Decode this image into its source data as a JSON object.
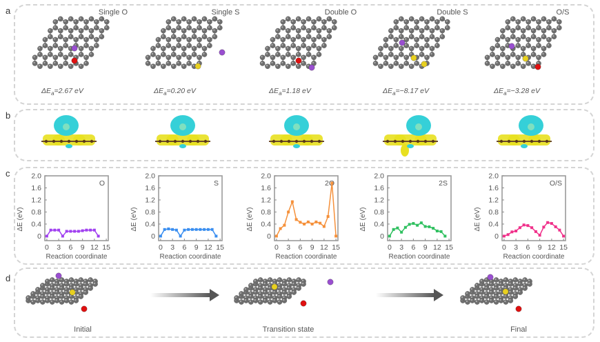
{
  "figure": {
    "panels": {
      "a": {
        "letter": "a",
        "structures": [
          {
            "title": "Single O",
            "energy_prefix": "ΔE",
            "energy_sub": "a",
            "energy_value": "=2.67 eV",
            "dopants": [
              "O"
            ]
          },
          {
            "title": "Single S",
            "energy_prefix": "ΔE",
            "energy_sub": "a",
            "energy_value": "=0.20 eV",
            "dopants": [
              "S"
            ]
          },
          {
            "title": "Double O",
            "energy_prefix": "ΔE",
            "energy_sub": "a",
            "energy_value": "=1.18 eV",
            "dopants": [
              "O"
            ]
          },
          {
            "title": "Double S",
            "energy_prefix": "ΔE",
            "energy_sub": "a",
            "energy_value": "=−8.17 eV",
            "dopants": [
              "S",
              "S"
            ]
          },
          {
            "title": "O/S",
            "energy_prefix": "ΔE",
            "energy_sub": "a",
            "energy_value": "=−3.28 eV",
            "dopants": [
              "S",
              "O"
            ]
          }
        ]
      },
      "b": {
        "letter": "b",
        "description": "Charge density difference side views for each structure"
      },
      "c": {
        "letter": "c",
        "ylabel": "ΔE (eV)",
        "xlabel": "Reaction coordinate"
      },
      "d": {
        "letter": "d",
        "stages": [
          "Initial",
          "Transition state",
          "Final"
        ]
      }
    },
    "colors": {
      "carbon": "#6e6e6e",
      "oxygen": "#e01010",
      "sulfur": "#e8d020",
      "potassium": "#9a4fd0",
      "isosurface_cyan": "#35d0d8",
      "isosurface_yellow": "#e8e020",
      "border": "#d4d4d4"
    }
  },
  "chart_data": [
    {
      "type": "line",
      "label": "O",
      "color": "#a040f0",
      "x": [
        0,
        1,
        2,
        3,
        4,
        5,
        6,
        7,
        8,
        9,
        10,
        11,
        12,
        13
      ],
      "values": [
        0,
        0.2,
        0.2,
        0.2,
        0,
        0.16,
        0.16,
        0.16,
        0.16,
        0.18,
        0.2,
        0.2,
        0.2,
        0
      ],
      "xlabel": "Reaction coordinate",
      "ylabel": "ΔE (eV)",
      "xticks": [
        0,
        3,
        6,
        9,
        12,
        15
      ],
      "yticks": [
        0,
        0.4,
        0.8,
        1.2,
        1.6,
        2.0
      ],
      "xlim": [
        -0.5,
        15.5
      ],
      "ylim": [
        -0.15,
        2.0
      ]
    },
    {
      "type": "line",
      "label": "S",
      "color": "#3a8ef0",
      "x": [
        0,
        1,
        2,
        3,
        4,
        5,
        6,
        7,
        8,
        9,
        10,
        11,
        12,
        13,
        14
      ],
      "values": [
        0,
        0.22,
        0.24,
        0.22,
        0.2,
        0,
        0.2,
        0.22,
        0.22,
        0.22,
        0.22,
        0.22,
        0.22,
        0.22,
        0
      ],
      "xlabel": "Reaction coordinate",
      "ylabel": "ΔE (eV)",
      "xticks": [
        0,
        3,
        6,
        9,
        12,
        15
      ],
      "yticks": [
        0,
        0.4,
        0.8,
        1.2,
        1.6,
        2.0
      ],
      "xlim": [
        -0.5,
        15.5
      ],
      "ylim": [
        -0.15,
        2.0
      ]
    },
    {
      "type": "line",
      "label": "2O",
      "color": "#f5903a",
      "x": [
        0,
        1,
        2,
        3,
        4,
        5,
        6,
        7,
        8,
        9,
        10,
        11,
        12,
        13,
        14,
        15
      ],
      "values": [
        0,
        0.25,
        0.36,
        0.8,
        1.14,
        0.55,
        0.46,
        0.4,
        0.47,
        0.4,
        0.47,
        0.43,
        0.32,
        0.65,
        1.76,
        0
      ],
      "xlabel": "Reaction coordinate",
      "ylabel": "ΔE (eV)",
      "xticks": [
        0,
        3,
        6,
        9,
        12,
        15
      ],
      "yticks": [
        0,
        0.4,
        0.8,
        1.2,
        1.6,
        2.0
      ],
      "xlim": [
        -0.5,
        15.5
      ],
      "ylim": [
        -0.15,
        2.0
      ]
    },
    {
      "type": "line",
      "label": "2S",
      "color": "#30c060",
      "x": [
        0,
        1,
        2,
        3,
        4,
        5,
        6,
        7,
        8,
        9,
        10,
        11,
        12,
        13,
        14
      ],
      "values": [
        0,
        0.22,
        0.27,
        0.13,
        0.29,
        0.39,
        0.42,
        0.36,
        0.44,
        0.32,
        0.31,
        0.26,
        0.17,
        0.15,
        0
      ],
      "xlabel": "Reaction coordinate",
      "ylabel": "ΔE (eV)",
      "xticks": [
        0,
        3,
        6,
        9,
        12,
        15
      ],
      "yticks": [
        0,
        0.4,
        0.8,
        1.2,
        1.6,
        2.0
      ],
      "xlim": [
        -0.5,
        15.5
      ],
      "ylim": [
        -0.15,
        2.0
      ]
    },
    {
      "type": "line",
      "label": "O/S",
      "color": "#f0308a",
      "x": [
        0,
        1,
        2,
        3,
        4,
        5,
        6,
        7,
        8,
        9,
        10,
        11,
        12,
        13,
        14,
        15
      ],
      "values": [
        0,
        0.05,
        0.14,
        0.17,
        0.28,
        0.37,
        0.35,
        0.28,
        0.15,
        0.03,
        0.3,
        0.45,
        0.42,
        0.31,
        0.2,
        0
      ],
      "xlabel": "Reaction coordinate",
      "ylabel": "ΔE (eV)",
      "xticks": [
        0,
        3,
        6,
        9,
        12,
        15
      ],
      "yticks": [
        0,
        0.4,
        0.8,
        1.2,
        1.6,
        2.0
      ],
      "xlim": [
        -0.5,
        15.5
      ],
      "ylim": [
        -0.15,
        2.0
      ]
    }
  ]
}
